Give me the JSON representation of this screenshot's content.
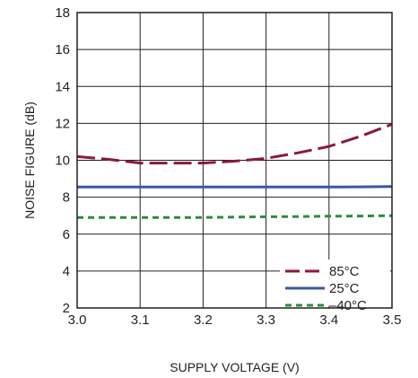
{
  "chart_data": {
    "type": "line",
    "xlabel": "SUPPLY VOLTAGE (V)",
    "ylabel": "NOISE FIGURE (dB)",
    "xlim": [
      3.0,
      3.5
    ],
    "ylim": [
      2,
      18
    ],
    "xticks": [
      "3.0",
      "3.1",
      "3.2",
      "3.3",
      "3.4",
      "3.5"
    ],
    "yticks": [
      "2",
      "4",
      "6",
      "8",
      "10",
      "12",
      "14",
      "16",
      "18"
    ],
    "grid": true,
    "legend_position": "bottom-right",
    "x": [
      3.0,
      3.05,
      3.1,
      3.15,
      3.2,
      3.25,
      3.3,
      3.35,
      3.4,
      3.45,
      3.5
    ],
    "series": [
      {
        "name": "85°C",
        "color": "#8b1a3c",
        "dash": "long-dash",
        "values": [
          10.2,
          10.05,
          9.85,
          9.85,
          9.85,
          9.95,
          10.1,
          10.4,
          10.75,
          11.3,
          11.95
        ]
      },
      {
        "name": "25°C",
        "color": "#3b57a6",
        "dash": "solid",
        "values": [
          8.55,
          8.55,
          8.55,
          8.55,
          8.55,
          8.55,
          8.55,
          8.55,
          8.55,
          8.56,
          8.58
        ]
      },
      {
        "name": "–40°C",
        "color": "#2e8b3f",
        "dash": "short-dash",
        "values": [
          6.9,
          6.9,
          6.9,
          6.9,
          6.9,
          6.92,
          6.94,
          6.95,
          6.97,
          6.98,
          7.0
        ]
      }
    ]
  }
}
